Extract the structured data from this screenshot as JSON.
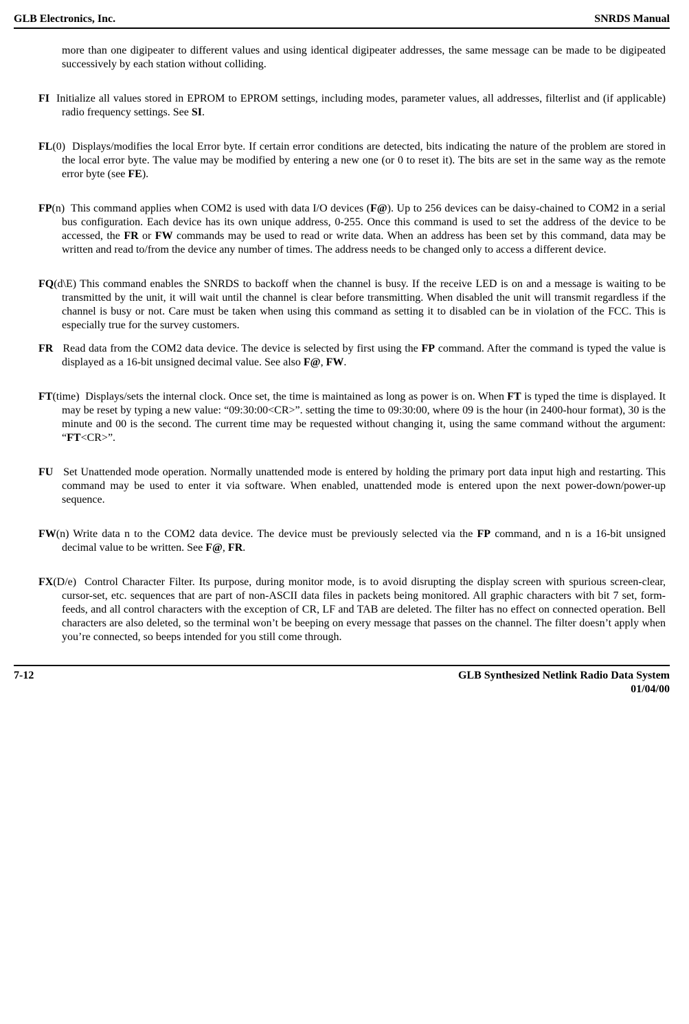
{
  "header": {
    "left": "GLB Electronics, Inc.",
    "right": "SNRDS  Manual"
  },
  "entries": {
    "intro": {
      "text": "more than one digipeater to different values and using identical digipeater addresses, the same message can be made to be digipeated successively by each station without colliding."
    },
    "fi": {
      "cmd": "FI",
      "arg": "",
      "body_a": "Initialize all values stored in EPROM to EPROM settings, including modes, parameter values, all addresses, filterlist and (if applicable) radio frequency settings. See ",
      "ref1": "SI",
      "body_b": "."
    },
    "fl": {
      "cmd": "FL",
      "arg": "(0)",
      "body_a": "Displays/modifies the local Error byte. If certain error conditions are detected, bits indicating the nature of the problem are stored in the local error byte. The value may be modified by entering a new one (or 0 to reset it). The bits are set in the same way as the remote error byte (see ",
      "ref1": "FE",
      "body_b": ")."
    },
    "fp": {
      "cmd": "FP",
      "arg": "(n)",
      "body_a": "This command applies when COM2 is used with data I/O devices (",
      "ref1": "F@",
      "body_b": "). Up to 256 devices can be daisy-chained to COM2 in a serial bus configuration. Each device has its own unique address, 0-255. Once this command is used to set the address of the device to be accessed, the ",
      "ref2": "FR",
      "body_c": " or ",
      "ref3": "FW",
      "body_d": " commands may be used to read or write data. When an address has been set by this command, data may be written and read to/from the device any number of times. The address needs to be changed only to access a different device."
    },
    "fq": {
      "cmd": "FQ",
      "arg": "(d\\E)",
      "body_a": "This command enables the SNRDS to backoff when the channel is busy.  If the receive LED is on and a message is waiting to be transmitted by the unit, it will wait until the channel is clear before transmitting. When disabled the unit will transmit regardless if the channel is busy or not.  Care must be taken when using this command as setting it to disabled can be in violation of the FCC.  This is especially true for the survey customers."
    },
    "fr": {
      "cmd": "FR",
      "arg": "",
      "body_a": "Read data from the COM2 data device. The device is selected by first using the ",
      "ref1": "FP",
      "body_b": " command. After the command is typed the value is displayed as a 16-bit unsigned decimal value. See also ",
      "ref2": "F@",
      "body_c": ", ",
      "ref3": "FW",
      "body_d": "."
    },
    "ft": {
      "cmd": "FT",
      "arg": "(time)",
      "body_a": "Displays/sets the internal clock. Once set, the time is maintained as long as power is on. When ",
      "ref1": "FT",
      "body_b": " is typed the time is displayed. It may be reset by typing a new value: “09:30:00<CR>”. setting the time to 09:30:00, where 09 is the hour (in 2400-hour format), 30 is the minute and 00 is the second. The current time may be requested without changing it, using the same command without the argument: “",
      "ref2": "FT",
      "body_c": "<CR>”."
    },
    "fu": {
      "cmd": "FU",
      "arg": "",
      "body_a": "Set Unattended mode operation. Normally unattended mode is entered by holding the primary port data input high and restarting. This command may be used to enter it via software. When enabled, unattended mode is entered upon the next power-down/power-up sequence."
    },
    "fw": {
      "cmd": "FW",
      "arg": "(n)",
      "body_a": "Write data n to the COM2 data device. The device must be previously selected via the ",
      "ref1": "FP",
      "body_b": " command, and n is a 16-bit unsigned decimal value to be written. See ",
      "ref2": "F@",
      "body_c": ", ",
      "ref3": "FR",
      "body_d": "."
    },
    "fx": {
      "cmd": "FX",
      "arg": "(D/e)",
      "body_a": "Control Character Filter. Its purpose, during monitor mode, is to avoid disrupting the display screen with spurious screen-clear, cursor-set, etc. sequences that are part of non-ASCII data files in packets being monitored. All graphic characters with bit 7 set, form-feeds, and all control characters with the exception of CR, LF and TAB are deleted. The filter has no effect on connected operation. Bell characters are also deleted, so the terminal won’t be beeping on every message that passes on the channel. The filter doesn’t apply when you’re connected, so beeps intended for you still come through."
    }
  },
  "footer": {
    "left": "7-12",
    "right_line1": "GLB Synthesized Netlink Radio Data System",
    "right_line2": "01/04/00"
  }
}
